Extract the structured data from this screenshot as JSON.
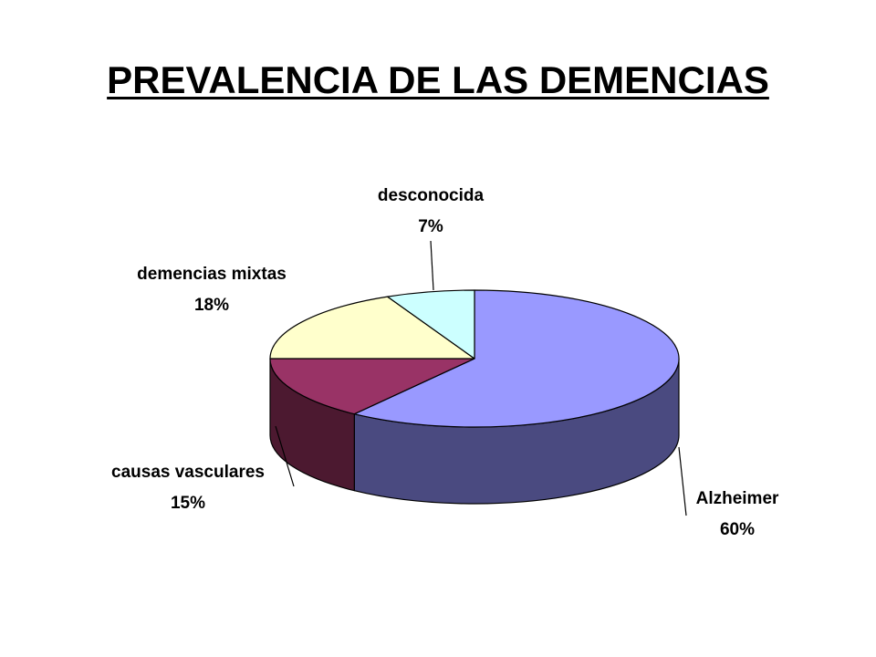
{
  "title": "PREVALENCIA DE LAS DEMENCIAS",
  "chart_data": {
    "type": "pie",
    "style": "3d",
    "title": "PREVALENCIA DE LAS DEMENCIAS",
    "legend": "none",
    "slices": [
      {
        "name": "Alzheimer",
        "value": 60,
        "label": "Alzheimer",
        "pct_label": "60%",
        "color": "#9999FF",
        "side_color": "#4A4A80"
      },
      {
        "name": "causas vasculares",
        "value": 15,
        "label": "causas vasculares",
        "pct_label": "15%",
        "color": "#993366",
        "side_color": "#4C1930"
      },
      {
        "name": "demencias mixtas",
        "value": 18,
        "label": "demencias mixtas",
        "pct_label": "18%",
        "color": "#FFFFCC",
        "side_color": "#808066"
      },
      {
        "name": "desconocida",
        "value": 7,
        "label": "desconocida",
        "pct_label": "7%",
        "color": "#CCFFFF",
        "side_color": "#668080"
      }
    ]
  }
}
